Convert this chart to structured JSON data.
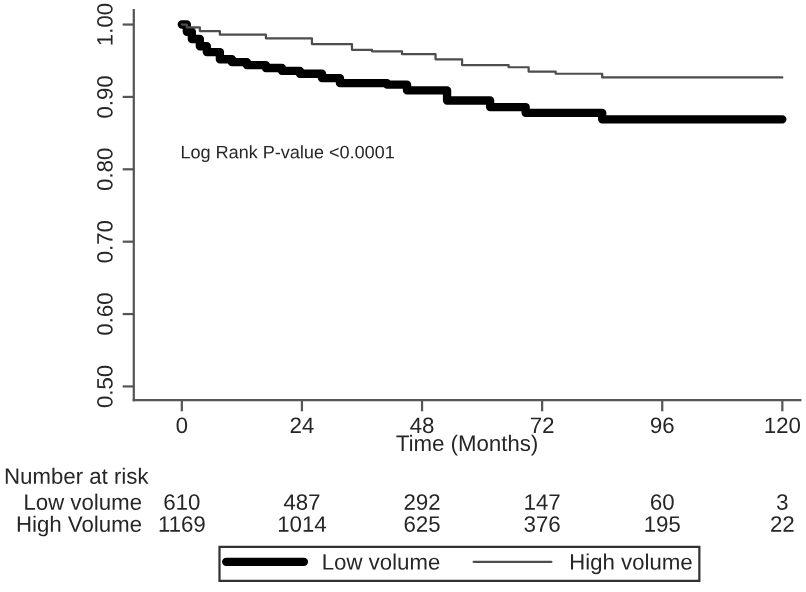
{
  "chart_data": {
    "type": "step",
    "xlabel": "Time (Months)",
    "xlim": [
      -9.6,
      123.6
    ],
    "ylim": [
      0.481,
      1.02
    ],
    "xticks": [
      0,
      24,
      48,
      72,
      96,
      120
    ],
    "yticks": [
      {
        "value": 0.5,
        "label": "0.50"
      },
      {
        "value": 0.6,
        "label": "0.60"
      },
      {
        "value": 0.7,
        "label": "0.70"
      },
      {
        "value": 0.8,
        "label": "0.80"
      },
      {
        "value": 0.9,
        "label": "0.90"
      },
      {
        "value": 1.0,
        "label": "1.00"
      }
    ],
    "grid": false,
    "legend": "bottom",
    "marker": "none",
    "line_style": "solid",
    "series": [
      {
        "name": "Low volume",
        "color": "#000000",
        "x": [
          0,
          1,
          2,
          3.6,
          5,
          7.6,
          10,
          13,
          16.8,
          20,
          23.6,
          28,
          31.6,
          41,
          45,
          53,
          61.6,
          68.7,
          84,
          120
        ],
        "values": [
          1.0,
          0.99,
          0.98,
          0.97,
          0.962,
          0.952,
          0.948,
          0.944,
          0.94,
          0.936,
          0.932,
          0.926,
          0.919,
          0.917,
          0.909,
          0.895,
          0.886,
          0.878,
          0.869,
          0.869
        ]
      },
      {
        "name": "High volume",
        "color": "#4d4d4d",
        "x": [
          0,
          1,
          3.6,
          7.6,
          16.8,
          26,
          34,
          38,
          44,
          50.7,
          56,
          65.3,
          69.3,
          74.7,
          84,
          120
        ],
        "values": [
          1.0,
          0.996,
          0.991,
          0.986,
          0.981,
          0.973,
          0.965,
          0.963,
          0.959,
          0.952,
          0.944,
          0.941,
          0.935,
          0.932,
          0.927,
          0.927
        ]
      }
    ],
    "annotations": [
      "Log Rank P-value <0.0001",
      "Number at risk",
      "Low volume",
      "610",
      "487",
      "292",
      "147",
      "60",
      "3",
      "High Volume",
      "1169",
      "1014",
      "625",
      "376",
      "195",
      "22"
    ]
  }
}
